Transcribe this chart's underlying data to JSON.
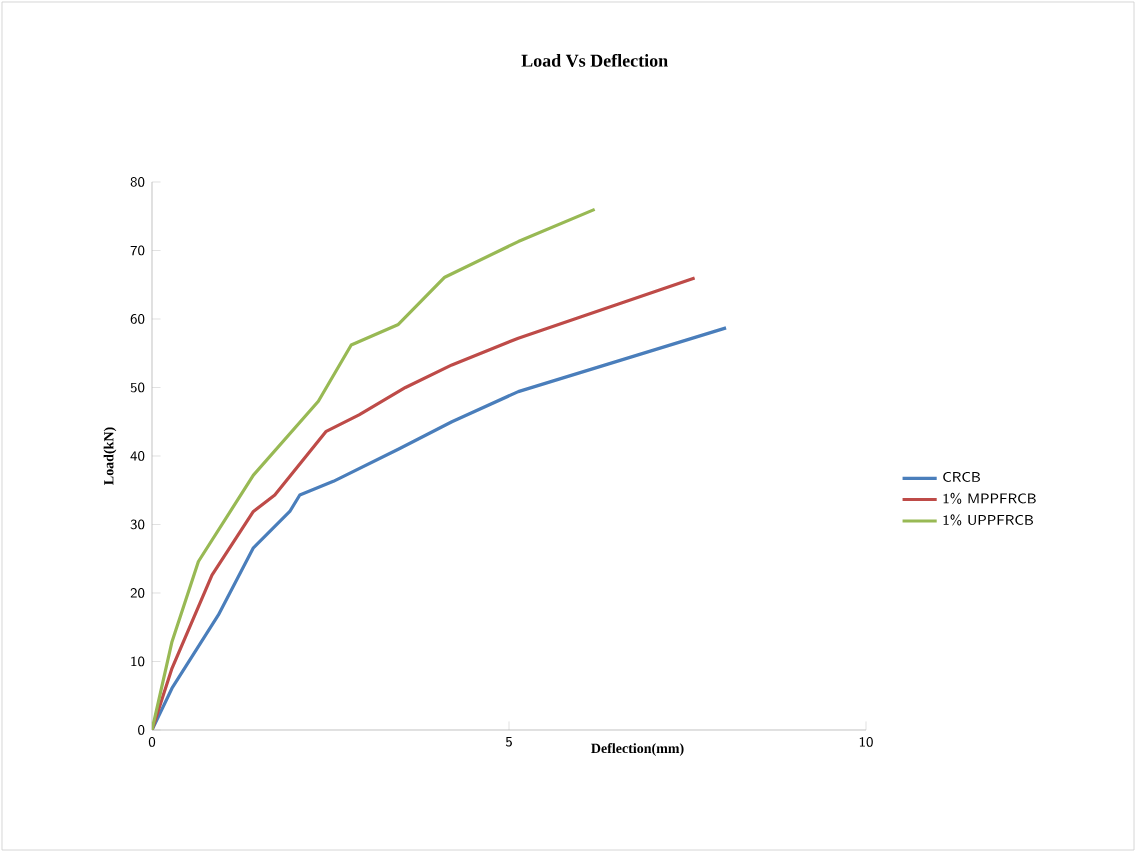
{
  "chart_data": {
    "type": "line",
    "title": "Load Vs Deflection",
    "xlabel": "Deflection(mm)",
    "ylabel": "Load(kN)",
    "xlim": [
      0,
      10
    ],
    "xticks": [
      0,
      5,
      10
    ],
    "ylim": [
      0,
      80
    ],
    "yticks": [
      0,
      10,
      20,
      30,
      40,
      50,
      60,
      70,
      80
    ],
    "grid": false,
    "legend": "right",
    "series": [
      {
        "name": "CRCB",
        "color": "#4a7ebb",
        "x": [
          0,
          0.28,
          0.93,
          1.42,
          1.93,
          2.07,
          2.54,
          3.47,
          4.2,
          5.13,
          8.04
        ],
        "values": [
          0,
          6.1,
          16.8,
          26.6,
          31.9,
          34.3,
          36.3,
          41.1,
          45,
          49.4,
          58.7
        ]
      },
      {
        "name": "1% MPPFRCB",
        "color": "#be4b48",
        "x": [
          0,
          0.28,
          0.84,
          1.42,
          1.72,
          2.44,
          2.9,
          3.55,
          4.2,
          5.13,
          7.6
        ],
        "values": [
          0,
          9,
          22.6,
          31.9,
          34.3,
          43.6,
          46,
          50,
          53.3,
          57.2,
          66
        ]
      },
      {
        "name": "1% UPPFRCB",
        "color": "#98b954",
        "x": [
          0,
          0.28,
          0.65,
          1.42,
          2.33,
          2.79,
          3.45,
          4.1,
          5.13,
          6.2
        ],
        "values": [
          0,
          12.9,
          24.6,
          37.2,
          48,
          56.2,
          59.2,
          66.1,
          71.3,
          76
        ]
      }
    ]
  }
}
